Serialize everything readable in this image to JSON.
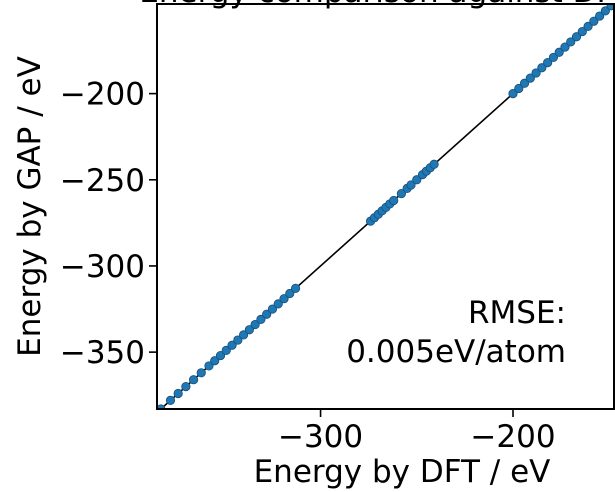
{
  "chart_data": {
    "type": "scatter",
    "title": "Energy comparison against DFT",
    "xlabel": "Energy by DFT / eV",
    "ylabel": "Energy by GAP / eV",
    "xlim": [
      -385,
      -147
    ],
    "ylim": [
      -383,
      -148
    ],
    "x_ticks": [
      -300,
      -200
    ],
    "x_tick_labels": [
      "−300",
      "−200"
    ],
    "y_ticks": [
      -200,
      -250,
      -300,
      -350
    ],
    "y_tick_labels": [
      "−200",
      "−250",
      "−300",
      "−350"
    ],
    "grid": false,
    "legend": null,
    "reference_line": {
      "slope": 1,
      "intercept": 0,
      "color": "#000000"
    },
    "point_color": "#1f77b4",
    "series": [
      {
        "x": [
          -383,
          -378,
          -374,
          -370,
          -366,
          -362,
          -358,
          -355,
          -352,
          -349,
          -346,
          -343,
          -340,
          -337,
          -334,
          -331,
          -328,
          -325,
          -322,
          -319,
          -316,
          -313,
          -274,
          -272,
          -270,
          -268,
          -266,
          -264,
          -262,
          -258,
          -255,
          -253,
          -250,
          -247,
          -245,
          -243,
          -241,
          -200,
          -197,
          -194,
          -191,
          -188,
          -185,
          -182,
          -179,
          -176,
          -173,
          -170,
          -167,
          -164,
          -161,
          -158,
          -155,
          -152,
          -149
        ],
        "y": [
          -383,
          -378,
          -374,
          -370,
          -366,
          -362,
          -358,
          -355,
          -352,
          -349,
          -346,
          -343,
          -340,
          -337,
          -334,
          -331,
          -328,
          -325,
          -322,
          -319,
          -316,
          -313,
          -274,
          -272,
          -270,
          -268,
          -266,
          -264,
          -262,
          -258,
          -255,
          -253,
          -250,
          -247,
          -245,
          -243,
          -241,
          -200,
          -197,
          -194,
          -191,
          -188,
          -185,
          -182,
          -179,
          -176,
          -173,
          -170,
          -167,
          -164,
          -161,
          -158,
          -155,
          -152,
          -149
        ]
      }
    ],
    "annotation": [
      "RMSE:",
      "0.005eV/atom"
    ]
  }
}
